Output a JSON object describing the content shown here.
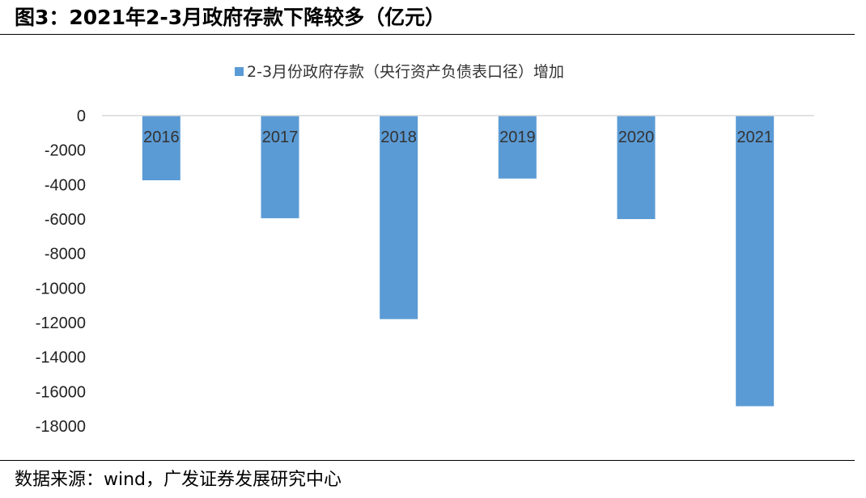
{
  "figure": {
    "title": "图3：2021年2-3月政府存款下降较多（亿元）",
    "source": "数据来源：wind，广发证券发展研究中心"
  },
  "chart_data": {
    "type": "bar",
    "categories": [
      "2016",
      "2017",
      "2018",
      "2019",
      "2020",
      "2021"
    ],
    "series": [
      {
        "name": "2-3月份政府存款（央行资产负债表口径）增加",
        "values": [
          -3750,
          -5950,
          -11800,
          -3650,
          -6000,
          -16850
        ],
        "color": "#5b9bd5"
      }
    ],
    "ylim": [
      -18000,
      0
    ],
    "yticks": [
      0,
      -2000,
      -4000,
      -6000,
      -8000,
      -10000,
      -12000,
      -14000,
      -16000,
      -18000
    ],
    "legend": "top-center",
    "grid": false
  }
}
